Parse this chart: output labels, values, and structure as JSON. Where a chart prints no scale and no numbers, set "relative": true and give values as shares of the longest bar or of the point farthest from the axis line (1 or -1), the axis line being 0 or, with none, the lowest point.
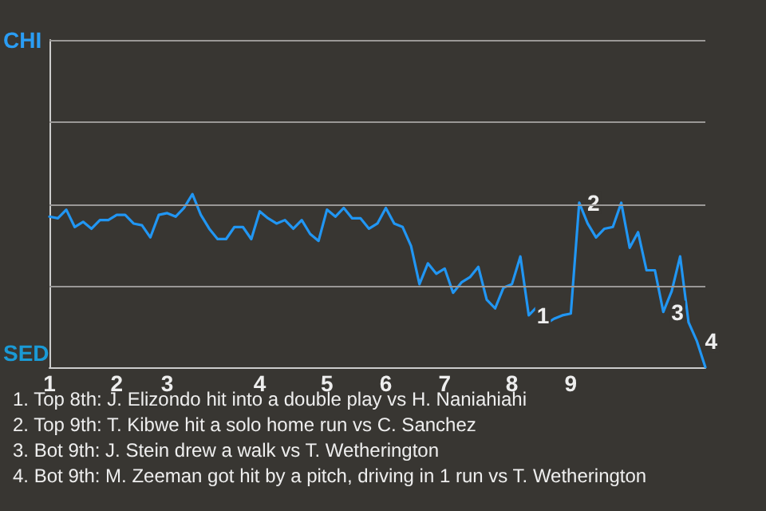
{
  "chart_data": {
    "type": "line",
    "relative": true,
    "categories": [
      "1",
      null,
      null,
      null,
      null,
      null,
      null,
      null,
      "2",
      null,
      null,
      null,
      null,
      null,
      "3",
      null,
      null,
      null,
      null,
      null,
      null,
      null,
      null,
      null,
      null,
      "4",
      null,
      null,
      null,
      null,
      null,
      null,
      null,
      "5",
      null,
      null,
      null,
      null,
      null,
      null,
      "6",
      null,
      null,
      null,
      null,
      null,
      null,
      "7",
      null,
      null,
      null,
      null,
      null,
      null,
      null,
      "8",
      null,
      null,
      null,
      null,
      null,
      null,
      "9",
      null,
      null,
      null,
      null,
      null,
      null,
      null,
      null,
      null,
      null,
      null,
      null,
      null,
      null,
      null,
      null
    ],
    "series": [
      {
        "color": "#2196f3",
        "values": [
          0.87,
          0.86,
          0.91,
          0.81,
          0.84,
          0.8,
          0.85,
          0.85,
          0.88,
          0.88,
          0.83,
          0.82,
          0.75,
          0.88,
          0.89,
          0.87,
          0.92,
          1,
          0.88,
          0.8,
          0.74,
          0.74,
          0.81,
          0.81,
          0.74,
          0.9,
          0.86,
          0.83,
          0.85,
          0.8,
          0.85,
          0.77,
          0.73,
          0.91,
          0.87,
          0.92,
          0.86,
          0.86,
          0.8,
          0.83,
          0.92,
          0.83,
          0.81,
          0.7,
          0.48,
          0.6,
          0.54,
          0.57,
          0.43,
          0.49,
          0.52,
          0.58,
          0.39,
          0.34,
          0.46,
          0.48,
          0.64,
          0.3,
          0.35,
          0.25,
          0.28,
          0.3,
          0.31,
          0.95,
          0.83,
          0.75,
          0.8,
          0.81,
          0.95,
          0.69,
          0.78,
          0.56,
          0.56,
          0.32,
          0.44,
          0.64,
          0.26,
          0.15,
          0
        ]
      }
    ],
    "ref_lines": [
      {
        "axis": "y",
        "value": 0.47,
        "color": "#9a9896"
      },
      {
        "axis": "y",
        "value": 0.94,
        "color": "#9a9896"
      },
      {
        "axis": "y",
        "value": 1.42,
        "color": "#9a9896"
      },
      {
        "axis": "y",
        "value": 1.89,
        "color": "#9a9896"
      }
    ],
    "marker": "none",
    "annotations": [
      {
        "text": "1",
        "y": 0.3
      },
      {
        "text": "2",
        "y": 0.95
      },
      {
        "text": "3",
        "y": 0.32
      },
      {
        "text": "4",
        "y": 0.15
      },
      "CHI",
      "SED",
      "1. Top 8th: J. Elizondo hit into a double play vs H. Naniahiahi",
      "2. Top 9th: T. Kibwe hit a solo home run vs C. Sanchez",
      "3. Bot 9th: J. Stein drew a walk vs T. Wetherington",
      "4. Bot 9th: M. Zeeman got hit by a pitch, driving in 1 run vs T. Wetherington"
    ]
  }
}
